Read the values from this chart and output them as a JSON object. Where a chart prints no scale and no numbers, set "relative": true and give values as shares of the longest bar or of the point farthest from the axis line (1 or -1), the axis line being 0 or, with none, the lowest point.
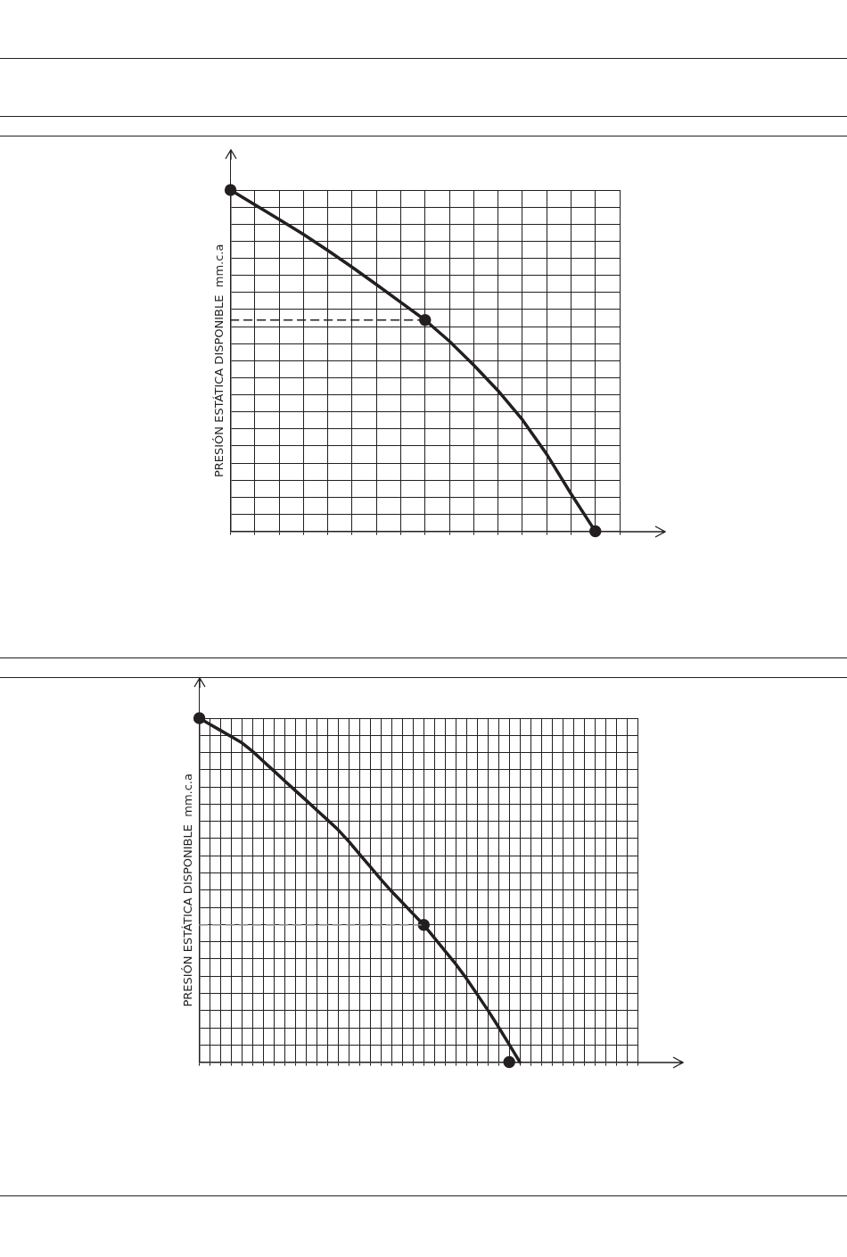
{
  "chart_data": [
    {
      "type": "line",
      "relative": true,
      "ylabel": "PRESIÓN ESTÁTICA DISPONIBLE  mm.c.a",
      "grid": true,
      "categories": [
        null,
        null,
        null,
        null,
        null,
        null,
        null,
        null,
        null,
        null,
        null,
        null,
        null,
        null,
        null,
        null,
        null
      ],
      "series": [
        {
          "color": "#231f20",
          "marker": "none",
          "values": [
            1.0,
            0.957,
            0.914,
            0.87,
            0.823,
            0.774,
            0.723,
            0.671,
            0.619,
            0.557,
            0.487,
            0.412,
            0.327,
            0.226,
            0.11,
            0,
            null
          ]
        },
        {
          "color": "#231f20",
          "marker": "none",
          "line_style": "dashed",
          "values": [
            0.619,
            0.619,
            0.619,
            0.619,
            0.619,
            0.619,
            0.619,
            0.619,
            0.619,
            null,
            null,
            null,
            null,
            null,
            null,
            null,
            null
          ]
        },
        {
          "color": "#231f20",
          "marker": "circle",
          "values": [
            1.0,
            null,
            null,
            null,
            null,
            null,
            null,
            null,
            0.619,
            null,
            null,
            null,
            null,
            null,
            null,
            0,
            null
          ]
        }
      ]
    },
    {
      "type": "line",
      "relative": true,
      "ylabel": "PRESIÓN ESTÁTICA DISPONIBLE  mm.c.a",
      "grid": true,
      "categories": [
        null,
        null,
        null,
        null,
        null,
        null,
        null,
        null,
        null,
        null,
        null,
        null,
        null,
        null,
        null,
        null,
        null,
        null,
        null,
        null,
        null,
        null,
        null,
        null,
        null,
        null,
        null,
        null,
        null,
        null,
        null,
        null,
        null,
        null,
        null,
        null,
        null,
        null,
        null,
        null,
        null,
        null
      ],
      "series": [
        {
          "color": "#231f20",
          "marker": "none",
          "values": [
            1.0,
            0.982,
            0.964,
            0.946,
            0.928,
            0.903,
            0.874,
            0.846,
            0.817,
            0.789,
            0.761,
            0.732,
            0.704,
            0.675,
            0.641,
            0.604,
            0.568,
            0.531,
            0.496,
            0.464,
            0.431,
            0.399,
            0.361,
            0.323,
            0.285,
            0.243,
            0.197,
            0.151,
            0.102,
            0.051,
            0,
            null,
            null,
            null,
            null,
            null,
            null,
            null,
            null,
            null,
            null,
            null
          ]
        },
        {
          "color": "#888888",
          "marker": "none",
          "line_style": "dashed",
          "values": [
            0.399,
            0.399,
            0.399,
            0.399,
            0.399,
            0.399,
            0.399,
            0.399,
            0.399,
            0.399,
            0.399,
            0.399,
            0.399,
            0.399,
            0.399,
            0.399,
            0.399,
            0.399,
            0.399,
            0.399,
            0.399,
            0.399,
            null,
            null,
            null,
            null,
            null,
            null,
            null,
            null,
            null,
            null,
            null,
            null,
            null,
            null,
            null,
            null,
            null,
            null,
            null,
            null
          ]
        },
        {
          "color": "#231f20",
          "marker": "circle",
          "values": [
            1.0,
            null,
            null,
            null,
            null,
            null,
            null,
            null,
            null,
            null,
            null,
            null,
            null,
            null,
            null,
            null,
            null,
            null,
            null,
            null,
            null,
            0.399,
            null,
            null,
            null,
            null,
            null,
            null,
            null,
            0,
            null,
            null,
            null,
            null,
            null,
            null,
            null,
            null,
            null,
            null,
            null,
            null
          ]
        }
      ]
    }
  ]
}
